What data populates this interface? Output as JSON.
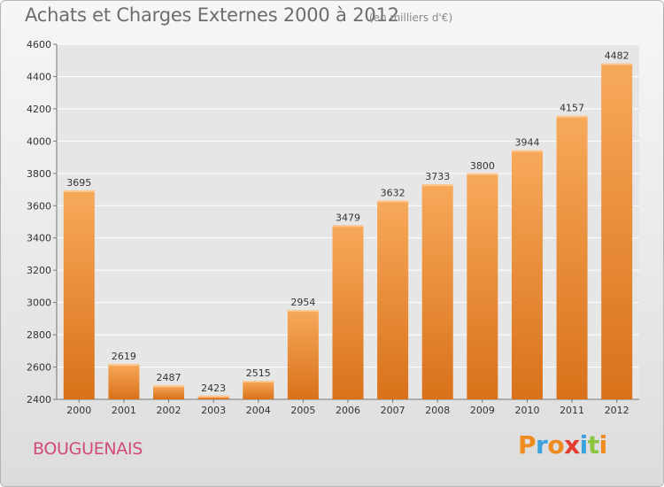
{
  "header": {
    "title": "Achats et Charges Externes 2000 à 2012",
    "unit": "(en milliers d'€)"
  },
  "footer": {
    "city": "BOUGUENAIS",
    "logo": {
      "letters": [
        "P",
        "r",
        "o",
        "x",
        "i",
        "t",
        "i"
      ],
      "colors": [
        "#f08c1f",
        "#3aa2dd",
        "#f08c1f",
        "#e33b2e",
        "#3aa2dd",
        "#8bc53f",
        "#f08c1f"
      ]
    }
  },
  "colors": {
    "bar": "#f28b25",
    "bar_light": "#f7a95a",
    "bar_dark": "#d9711a",
    "grid": "#ffffff",
    "axis_text": "#333333"
  },
  "chart_data": {
    "type": "bar",
    "title": "Achats et Charges Externes 2000 à 2012",
    "subtitle": "(en milliers d'€)",
    "categories": [
      "2000",
      "2001",
      "2002",
      "2003",
      "2004",
      "2005",
      "2006",
      "2007",
      "2008",
      "2009",
      "2010",
      "2011",
      "2012"
    ],
    "values": [
      3695,
      2619,
      2487,
      2423,
      2515,
      2954,
      3479,
      3632,
      3733,
      3800,
      3944,
      4157,
      4482
    ],
    "ylim": [
      2400,
      4600
    ],
    "yticks": [
      2400,
      2600,
      2800,
      3000,
      3200,
      3400,
      3600,
      3800,
      4000,
      4200,
      4400,
      4600
    ],
    "grid": true,
    "xlabel": "",
    "ylabel": ""
  }
}
